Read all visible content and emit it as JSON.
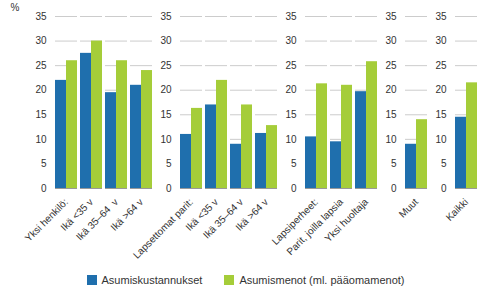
{
  "chart_data": {
    "type": "bar",
    "categories": [
      "Yksi henkilö:",
      "Ikä <35 v",
      "Ikä 35–64  v",
      "Ikä >64 v",
      null,
      "Lapsettomat parit:",
      "Ikä <35 v",
      "Ikä 35–64 v",
      "Ikä >64 v",
      null,
      "Lapsiperheet:",
      "Parit, joilla lapsia",
      "Yksi huoltaja",
      null,
      "Muut",
      null,
      "Kaikki"
    ],
    "series": [
      {
        "name": "Asumiskustannukset",
        "color": "#1f6fad",
        "values": [
          22,
          27.5,
          19.5,
          21,
          null,
          11,
          17,
          9,
          11.2,
          null,
          10.5,
          9.5,
          19.7,
          null,
          9,
          null,
          14.5
        ]
      },
      {
        "name": "Asumismenot (ml. pääomamenot)",
        "color": "#a5cd39",
        "values": [
          26,
          30,
          26,
          24,
          null,
          16.3,
          22,
          17,
          12.8,
          null,
          21.3,
          21,
          25.8,
          null,
          14,
          null,
          21.5
        ]
      }
    ],
    "y_label": "%",
    "ylim": [
      0,
      35
    ],
    "yticks": [
      0,
      5,
      10,
      15,
      20,
      25,
      30,
      35
    ],
    "grid": true,
    "legend": "bottom"
  }
}
